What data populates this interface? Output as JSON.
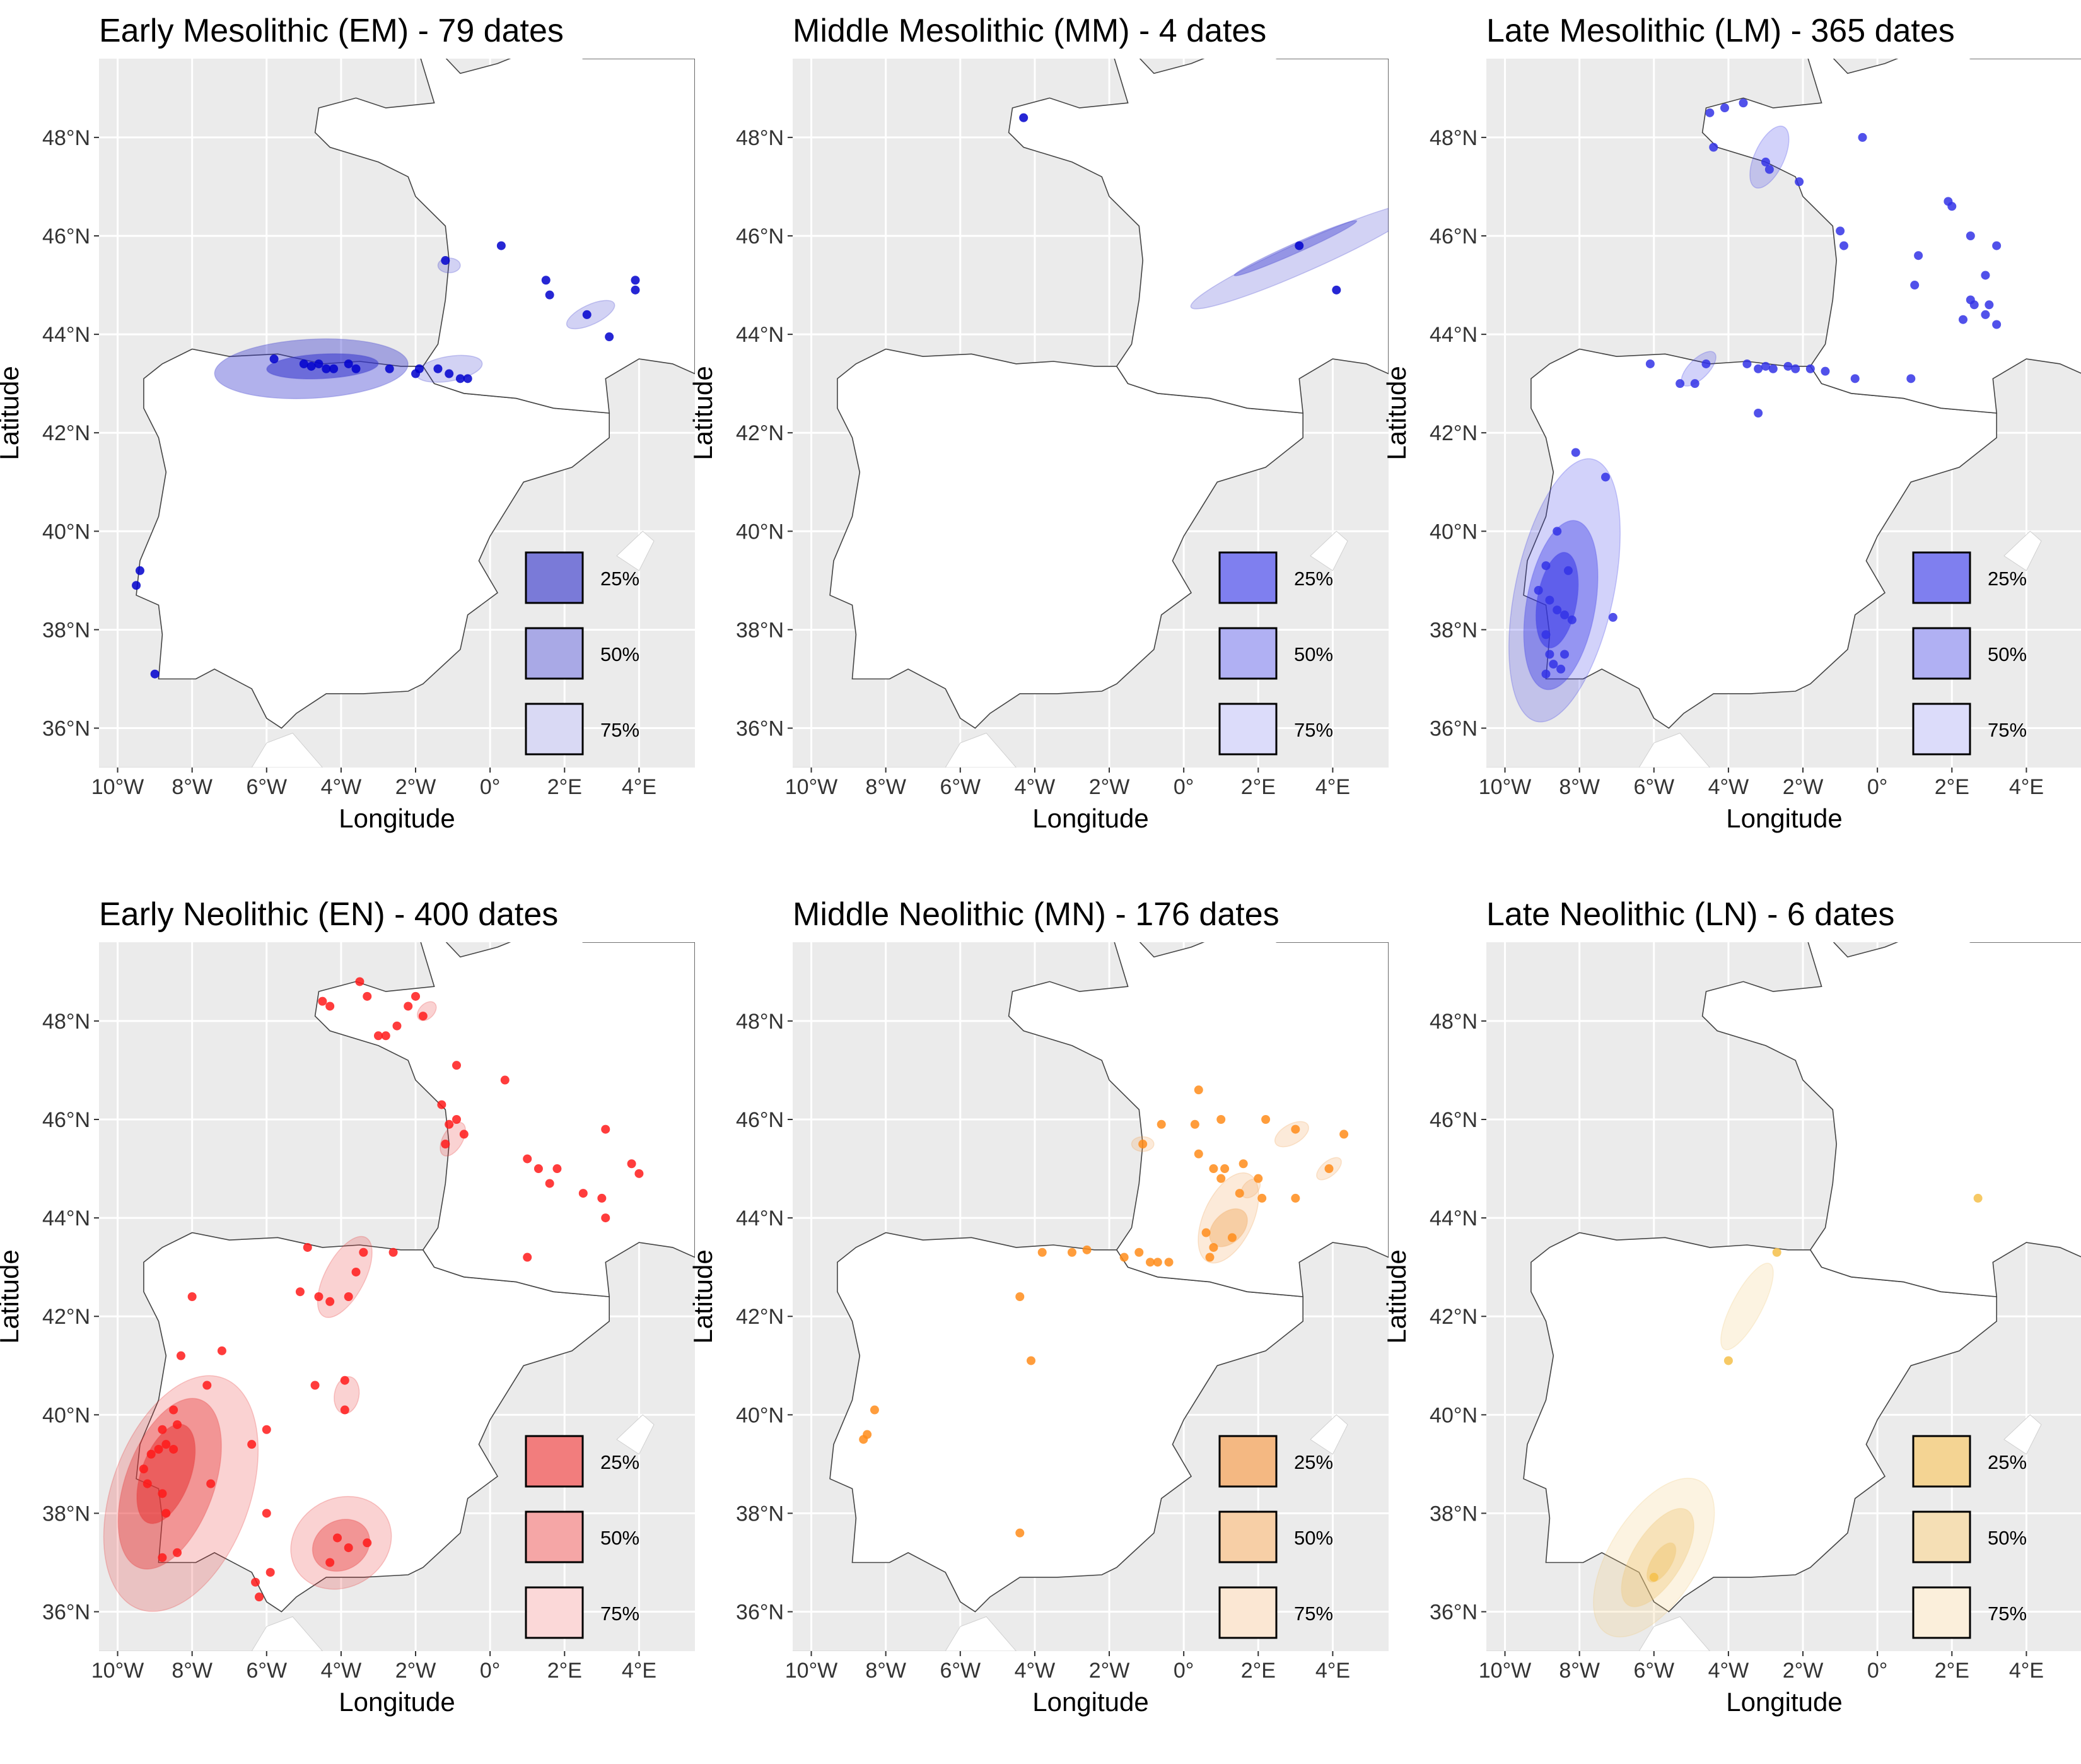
{
  "axes": {
    "xlabel": "Longitude",
    "ylabel": "Latitude",
    "xlim": [
      -10.5,
      5.5
    ],
    "ylim": [
      35.2,
      49.6
    ],
    "xticks": [
      -10,
      -8,
      -6,
      -4,
      -2,
      0,
      2,
      4
    ],
    "xtick_labels": [
      "10°W",
      "8°W",
      "6°W",
      "4°W",
      "2°W",
      "0°",
      "2°E",
      "4°E"
    ],
    "yticks": [
      36,
      38,
      40,
      42,
      44,
      46,
      48
    ],
    "ytick_labels": [
      "36°N",
      "38°N",
      "40°N",
      "42°N",
      "44°N",
      "46°N",
      "48°N"
    ]
  },
  "chart_data": [
    {
      "type": "scatter",
      "title": "Early Mesolithic (EM) - 79 dates",
      "point_color": "#0000cd",
      "contour_color": "#3333cc",
      "legend": [
        {
          "label": "25%",
          "fill": "#7a7ad8"
        },
        {
          "label": "50%",
          "fill": "#a9a9e6"
        },
        {
          "label": "75%",
          "fill": "#d9d9f4"
        }
      ],
      "points": [
        [
          -9.4,
          39.2
        ],
        [
          -9.5,
          38.9
        ],
        [
          -9.0,
          37.1
        ],
        [
          -5.8,
          43.5
        ],
        [
          -5.0,
          43.4
        ],
        [
          -4.8,
          43.35
        ],
        [
          -4.6,
          43.4
        ],
        [
          -4.4,
          43.3
        ],
        [
          -4.2,
          43.3
        ],
        [
          -3.8,
          43.4
        ],
        [
          -3.6,
          43.3
        ],
        [
          -2.7,
          43.3
        ],
        [
          -2.0,
          43.2
        ],
        [
          -1.9,
          43.3
        ],
        [
          -1.4,
          43.3
        ],
        [
          -1.1,
          43.2
        ],
        [
          -0.8,
          43.1
        ],
        [
          -0.6,
          43.1
        ],
        [
          -1.2,
          45.5
        ],
        [
          0.3,
          45.8
        ],
        [
          1.5,
          45.1
        ],
        [
          1.6,
          44.8
        ],
        [
          2.6,
          44.4
        ],
        [
          3.9,
          45.1
        ],
        [
          3.9,
          44.9
        ],
        [
          3.2,
          43.95
        ]
      ],
      "ellipses": [
        {
          "cx": -4.8,
          "cy": 43.3,
          "rx": 2.6,
          "ry": 0.6,
          "rot": -3,
          "level": "50%"
        },
        {
          "cx": -4.5,
          "cy": 43.35,
          "rx": 1.5,
          "ry": 0.25,
          "rot": -3,
          "level": "25%"
        },
        {
          "cx": -1.1,
          "cy": 43.3,
          "rx": 0.9,
          "ry": 0.25,
          "rot": -10,
          "level": "75%"
        },
        {
          "cx": -1.1,
          "cy": 45.4,
          "rx": 0.3,
          "ry": 0.15,
          "rot": 0,
          "level": "75%"
        },
        {
          "cx": 2.7,
          "cy": 44.4,
          "rx": 0.7,
          "ry": 0.2,
          "rot": -25,
          "level": "75%"
        }
      ]
    },
    {
      "type": "scatter",
      "title": "Middle Mesolithic (MM) - 4 dates",
      "point_color": "#0000cd",
      "contour_color": "#3333cc",
      "legend": [
        {
          "label": "25%",
          "fill": "#7f7fef"
        },
        {
          "label": "50%",
          "fill": "#b0b0f3"
        },
        {
          "label": "75%",
          "fill": "#dcdcfa"
        }
      ],
      "points": [
        [
          -4.3,
          48.4
        ],
        [
          3.1,
          45.8
        ],
        [
          4.1,
          44.9
        ]
      ],
      "ellipses": [
        {
          "cx": 3.3,
          "cy": 45.6,
          "rx": 3.4,
          "ry": 0.3,
          "rot": -24,
          "level": "75%"
        },
        {
          "cx": 3.0,
          "cy": 45.75,
          "rx": 1.8,
          "ry": 0.1,
          "rot": -24,
          "level": "50%"
        }
      ]
    },
    {
      "type": "scatter",
      "title": "Late Mesolithic (LM) - 365 dates",
      "point_color": "#3333e6",
      "contour_color": "#3333e6",
      "legend": [
        {
          "label": "25%",
          "fill": "#7f7fef"
        },
        {
          "label": "50%",
          "fill": "#b0b0f3"
        },
        {
          "label": "75%",
          "fill": "#dcdcfa"
        }
      ],
      "points": [
        [
          -4.5,
          48.5
        ],
        [
          -4.1,
          48.6
        ],
        [
          -3.6,
          48.7
        ],
        [
          -4.4,
          47.8
        ],
        [
          -3.0,
          47.5
        ],
        [
          -2.9,
          47.35
        ],
        [
          -2.1,
          47.1
        ],
        [
          -0.4,
          48.0
        ],
        [
          1.9,
          46.7
        ],
        [
          2.0,
          46.6
        ],
        [
          2.5,
          46.0
        ],
        [
          3.2,
          45.8
        ],
        [
          -1.0,
          46.1
        ],
        [
          -0.9,
          45.8
        ],
        [
          1.1,
          45.6
        ],
        [
          2.9,
          45.2
        ],
        [
          2.5,
          44.7
        ],
        [
          2.6,
          44.6
        ],
        [
          2.3,
          44.3
        ],
        [
          3.0,
          44.6
        ],
        [
          1.0,
          45.0
        ],
        [
          2.9,
          44.4
        ],
        [
          3.2,
          44.2
        ],
        [
          -3.5,
          43.4
        ],
        [
          -3.2,
          43.3
        ],
        [
          -3.0,
          43.35
        ],
        [
          -2.8,
          43.3
        ],
        [
          -2.4,
          43.35
        ],
        [
          -2.2,
          43.3
        ],
        [
          -1.8,
          43.3
        ],
        [
          -1.4,
          43.25
        ],
        [
          -0.6,
          43.1
        ],
        [
          0.9,
          43.1
        ],
        [
          -4.6,
          43.4
        ],
        [
          -4.9,
          43.0
        ],
        [
          -5.3,
          43.0
        ],
        [
          -6.1,
          43.4
        ],
        [
          -3.2,
          42.4
        ],
        [
          -8.1,
          41.6
        ],
        [
          -7.3,
          41.1
        ],
        [
          -8.6,
          40.0
        ],
        [
          -8.9,
          39.3
        ],
        [
          -8.3,
          39.2
        ],
        [
          -9.1,
          38.8
        ],
        [
          -8.8,
          38.6
        ],
        [
          -8.6,
          38.4
        ],
        [
          -8.4,
          38.3
        ],
        [
          -8.2,
          38.2
        ],
        [
          -7.1,
          38.25
        ],
        [
          -8.9,
          37.9
        ],
        [
          -8.8,
          37.5
        ],
        [
          -8.7,
          37.3
        ],
        [
          -8.9,
          37.1
        ],
        [
          -8.5,
          37.2
        ],
        [
          -8.4,
          37.5
        ]
      ],
      "ellipses": [
        {
          "cx": -8.4,
          "cy": 38.8,
          "rx": 3.6,
          "ry": 1.0,
          "rot": -78,
          "level": "75%"
        },
        {
          "cx": -8.5,
          "cy": 38.5,
          "rx": 2.3,
          "ry": 0.7,
          "rot": -80,
          "level": "50%"
        },
        {
          "cx": -8.6,
          "cy": 38.6,
          "rx": 1.3,
          "ry": 0.4,
          "rot": -80,
          "level": "25%"
        },
        {
          "cx": -2.9,
          "cy": 47.6,
          "rx": 0.9,
          "ry": 0.3,
          "rot": -65,
          "level": "75%"
        },
        {
          "cx": -4.8,
          "cy": 43.3,
          "rx": 0.6,
          "ry": 0.2,
          "rot": -45,
          "level": "75%"
        }
      ]
    },
    {
      "type": "scatter",
      "title": "Early Neolithic (EN) - 400 dates",
      "point_color": "#ff1a1a",
      "contour_color": "#e63333",
      "legend": [
        {
          "label": "25%",
          "fill": "#f27d7d"
        },
        {
          "label": "50%",
          "fill": "#f5a6a6"
        },
        {
          "label": "75%",
          "fill": "#fbd8d8"
        }
      ],
      "points": [
        [
          -4.5,
          48.4
        ],
        [
          -4.3,
          48.3
        ],
        [
          -3.5,
          48.8
        ],
        [
          -3.3,
          48.5
        ],
        [
          -2.0,
          48.5
        ],
        [
          -2.2,
          48.3
        ],
        [
          -1.8,
          48.1
        ],
        [
          -3.0,
          47.7
        ],
        [
          -2.8,
          47.7
        ],
        [
          -2.5,
          47.9
        ],
        [
          -0.9,
          47.1
        ],
        [
          -1.3,
          46.3
        ],
        [
          -1.1,
          45.9
        ],
        [
          -0.9,
          46.0
        ],
        [
          -0.7,
          45.7
        ],
        [
          -1.2,
          45.5
        ],
        [
          0.4,
          46.8
        ],
        [
          1.0,
          45.2
        ],
        [
          1.3,
          45.0
        ],
        [
          1.6,
          44.7
        ],
        [
          1.8,
          45.0
        ],
        [
          2.5,
          44.5
        ],
        [
          3.1,
          45.8
        ],
        [
          3.0,
          44.4
        ],
        [
          3.1,
          44.0
        ],
        [
          3.8,
          45.1
        ],
        [
          4.0,
          44.9
        ],
        [
          1.0,
          43.2
        ],
        [
          -2.6,
          43.3
        ],
        [
          -3.4,
          43.3
        ],
        [
          -3.6,
          42.9
        ],
        [
          -3.8,
          42.4
        ],
        [
          -4.3,
          42.3
        ],
        [
          -4.6,
          42.4
        ],
        [
          -4.9,
          43.4
        ],
        [
          -5.1,
          42.5
        ],
        [
          -8.0,
          42.4
        ],
        [
          -7.2,
          41.3
        ],
        [
          -8.3,
          41.2
        ],
        [
          -7.6,
          40.6
        ],
        [
          -4.7,
          40.6
        ],
        [
          -3.9,
          40.7
        ],
        [
          -8.5,
          40.1
        ],
        [
          -8.4,
          39.8
        ],
        [
          -8.8,
          39.7
        ],
        [
          -8.5,
          39.3
        ],
        [
          -8.7,
          39.4
        ],
        [
          -8.9,
          39.3
        ],
        [
          -9.1,
          39.2
        ],
        [
          -9.3,
          38.9
        ],
        [
          -9.2,
          38.6
        ],
        [
          -8.8,
          38.4
        ],
        [
          -8.7,
          38.0
        ],
        [
          -7.5,
          38.6
        ],
        [
          -8.8,
          37.1
        ],
        [
          -8.4,
          37.2
        ],
        [
          -6.0,
          39.7
        ],
        [
          -6.4,
          39.4
        ],
        [
          -3.9,
          40.1
        ],
        [
          -6.0,
          38.0
        ],
        [
          -4.1,
          37.5
        ],
        [
          -3.8,
          37.3
        ],
        [
          -4.3,
          37.0
        ],
        [
          -3.3,
          37.4
        ],
        [
          -6.3,
          36.6
        ],
        [
          -6.2,
          36.3
        ],
        [
          -5.9,
          36.8
        ]
      ],
      "ellipses": [
        {
          "cx": -8.3,
          "cy": 38.4,
          "rx": 3.3,
          "ry": 1.4,
          "rot": -70,
          "level": "75%"
        },
        {
          "cx": -8.6,
          "cy": 38.6,
          "rx": 2.4,
          "ry": 0.9,
          "rot": -70,
          "level": "50%"
        },
        {
          "cx": -8.7,
          "cy": 38.8,
          "rx": 1.4,
          "ry": 0.5,
          "rot": -70,
          "level": "25%"
        },
        {
          "cx": -4.0,
          "cy": 37.4,
          "rx": 1.4,
          "ry": 0.9,
          "rot": -30,
          "level": "75%"
        },
        {
          "cx": -4.0,
          "cy": 37.35,
          "rx": 0.8,
          "ry": 0.5,
          "rot": -30,
          "level": "50%"
        },
        {
          "cx": -3.9,
          "cy": 42.8,
          "rx": 1.2,
          "ry": 0.4,
          "rot": -62,
          "level": "75%"
        },
        {
          "cx": -3.85,
          "cy": 40.4,
          "rx": 0.5,
          "ry": 0.25,
          "rot": -80,
          "level": "75%"
        },
        {
          "cx": -1.0,
          "cy": 45.6,
          "rx": 0.5,
          "ry": 0.2,
          "rot": -60,
          "level": "75%"
        },
        {
          "cx": -1.7,
          "cy": 48.2,
          "rx": 0.3,
          "ry": 0.15,
          "rot": -45,
          "level": "75%"
        }
      ]
    },
    {
      "type": "scatter",
      "title": "Middle Neolithic (MN) - 176 dates",
      "point_color": "#ff8c1a",
      "contour_color": "#f0a050",
      "legend": [
        {
          "label": "25%",
          "fill": "#f4b882"
        },
        {
          "label": "50%",
          "fill": "#f7cfa6"
        },
        {
          "label": "75%",
          "fill": "#fbe7d3"
        }
      ],
      "points": [
        [
          0.4,
          46.6
        ],
        [
          -0.6,
          45.9
        ],
        [
          0.3,
          45.9
        ],
        [
          1.0,
          46.0
        ],
        [
          2.2,
          46.0
        ],
        [
          3.0,
          45.8
        ],
        [
          4.3,
          45.7
        ],
        [
          -1.1,
          45.5
        ],
        [
          0.4,
          45.3
        ],
        [
          0.8,
          45.0
        ],
        [
          1.1,
          45.0
        ],
        [
          1.6,
          45.1
        ],
        [
          1.5,
          44.5
        ],
        [
          2.0,
          44.8
        ],
        [
          1.0,
          44.8
        ],
        [
          2.1,
          44.4
        ],
        [
          3.0,
          44.4
        ],
        [
          3.9,
          45.0
        ],
        [
          0.6,
          43.7
        ],
        [
          1.3,
          43.6
        ],
        [
          0.8,
          43.4
        ],
        [
          0.7,
          43.2
        ],
        [
          -0.9,
          43.1
        ],
        [
          -0.7,
          43.1
        ],
        [
          -0.4,
          43.1
        ],
        [
          -1.2,
          43.3
        ],
        [
          -1.6,
          43.2
        ],
        [
          -2.6,
          43.35
        ],
        [
          -3.8,
          43.3
        ],
        [
          -3.0,
          43.3
        ],
        [
          -4.4,
          42.4
        ],
        [
          -4.1,
          41.1
        ],
        [
          -8.3,
          40.1
        ],
        [
          -8.5,
          39.6
        ],
        [
          -8.6,
          39.5
        ],
        [
          -4.4,
          37.6
        ]
      ],
      "ellipses": [
        {
          "cx": 1.2,
          "cy": 44.0,
          "rx": 1.3,
          "ry": 0.5,
          "rot": -65,
          "level": "75%"
        },
        {
          "cx": 1.2,
          "cy": 43.8,
          "rx": 0.6,
          "ry": 0.3,
          "rot": -45,
          "level": "50%"
        },
        {
          "cx": 1.8,
          "cy": 44.6,
          "rx": 0.3,
          "ry": 0.15,
          "rot": -45,
          "level": "75%"
        },
        {
          "cx": 2.9,
          "cy": 45.7,
          "rx": 0.5,
          "ry": 0.2,
          "rot": -30,
          "level": "75%"
        },
        {
          "cx": 3.9,
          "cy": 45.0,
          "rx": 0.4,
          "ry": 0.15,
          "rot": -40,
          "level": "75%"
        },
        {
          "cx": -1.1,
          "cy": 45.5,
          "rx": 0.3,
          "ry": 0.15,
          "rot": 0,
          "level": "75%"
        }
      ]
    },
    {
      "type": "scatter",
      "title": "Late Neolithic (LN) - 6 dates",
      "point_color": "#f5c04a",
      "contour_color": "#f0c878",
      "legend": [
        {
          "label": "25%",
          "fill": "#f4d493"
        },
        {
          "label": "50%",
          "fill": "#f5dfb5"
        },
        {
          "label": "75%",
          "fill": "#fbefdb"
        }
      ],
      "points": [
        [
          2.7,
          44.4
        ],
        [
          -2.7,
          43.3
        ],
        [
          -4.0,
          41.1
        ],
        [
          -6.0,
          36.7
        ]
      ],
      "ellipses": [
        {
          "cx": -6.0,
          "cy": 37.1,
          "rx": 2.4,
          "ry": 0.9,
          "rot": -58,
          "level": "75%"
        },
        {
          "cx": -5.9,
          "cy": 37.1,
          "rx": 1.5,
          "ry": 0.5,
          "rot": -58,
          "level": "50%"
        },
        {
          "cx": -5.8,
          "cy": 37.0,
          "rx": 0.6,
          "ry": 0.2,
          "rot": -58,
          "level": "25%"
        },
        {
          "cx": -3.5,
          "cy": 42.2,
          "rx": 1.3,
          "ry": 0.3,
          "rot": -62,
          "level": "75%"
        }
      ]
    }
  ]
}
